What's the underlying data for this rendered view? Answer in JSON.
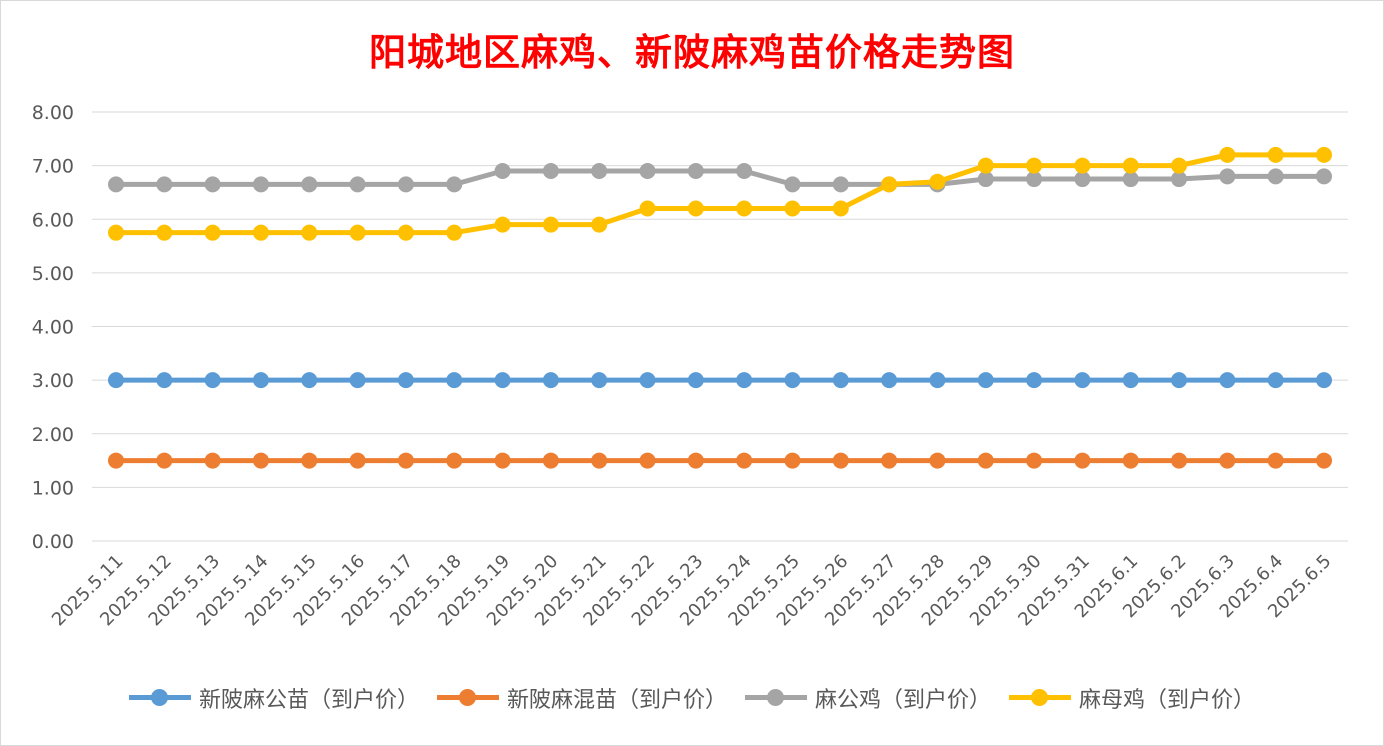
{
  "chart_data": {
    "type": "line",
    "title": "阳城地区麻鸡、新陂麻鸡苗价格走势图",
    "title_color": "#ff0000",
    "ylim": [
      0,
      8
    ],
    "yticks": [
      "0.00",
      "1.00",
      "2.00",
      "3.00",
      "4.00",
      "5.00",
      "6.00",
      "7.00",
      "8.00"
    ],
    "grid": true,
    "legend_position": "bottom",
    "categories": [
      "2025.5.11",
      "2025.5.12",
      "2025.5.13",
      "2025.5.14",
      "2025.5.15",
      "2025.5.16",
      "2025.5.17",
      "2025.5.18",
      "2025.5.19",
      "2025.5.20",
      "2025.5.21",
      "2025.5.22",
      "2025.5.23",
      "2025.5.24",
      "2025.5.25",
      "2025.5.26",
      "2025.5.27",
      "2025.5.28",
      "2025.5.29",
      "2025.5.30",
      "2025.5.31",
      "2025.6.1",
      "2025.6.2",
      "2025.6.3",
      "2025.6.4",
      "2025.6.5"
    ],
    "series": [
      {
        "name": "新陂麻公苗（到户价）",
        "color": "#5b9bd5",
        "values": [
          3.0,
          3.0,
          3.0,
          3.0,
          3.0,
          3.0,
          3.0,
          3.0,
          3.0,
          3.0,
          3.0,
          3.0,
          3.0,
          3.0,
          3.0,
          3.0,
          3.0,
          3.0,
          3.0,
          3.0,
          3.0,
          3.0,
          3.0,
          3.0,
          3.0,
          3.0
        ]
      },
      {
        "name": "新陂麻混苗（到户价）",
        "color": "#ed7d31",
        "values": [
          1.5,
          1.5,
          1.5,
          1.5,
          1.5,
          1.5,
          1.5,
          1.5,
          1.5,
          1.5,
          1.5,
          1.5,
          1.5,
          1.5,
          1.5,
          1.5,
          1.5,
          1.5,
          1.5,
          1.5,
          1.5,
          1.5,
          1.5,
          1.5,
          1.5,
          1.5
        ]
      },
      {
        "name": "麻公鸡（到户价）",
        "color": "#a5a5a5",
        "values": [
          6.65,
          6.65,
          6.65,
          6.65,
          6.65,
          6.65,
          6.65,
          6.65,
          6.9,
          6.9,
          6.9,
          6.9,
          6.9,
          6.9,
          6.65,
          6.65,
          6.65,
          6.65,
          6.75,
          6.75,
          6.75,
          6.75,
          6.75,
          6.8,
          6.8,
          6.8
        ]
      },
      {
        "name": "麻母鸡（到户价）",
        "color": "#ffc000",
        "values": [
          5.75,
          5.75,
          5.75,
          5.75,
          5.75,
          5.75,
          5.75,
          5.75,
          5.9,
          5.9,
          5.9,
          6.2,
          6.2,
          6.2,
          6.2,
          6.2,
          6.65,
          6.7,
          7.0,
          7.0,
          7.0,
          7.0,
          7.0,
          7.2,
          7.2,
          7.2
        ]
      }
    ]
  }
}
